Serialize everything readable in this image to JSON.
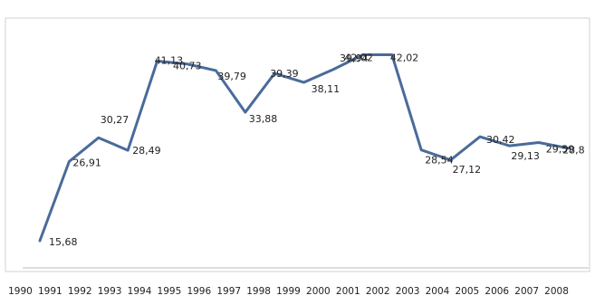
{
  "chart_data": {
    "type": "line",
    "title": "",
    "xlabel": "",
    "ylabel": "",
    "categories": [
      "1990",
      "1991",
      "1992",
      "1993",
      "1994",
      "1995",
      "1996",
      "1997",
      "1998",
      "1999",
      "2000",
      "2001",
      "2002",
      "2003",
      "2004",
      "2005",
      "2006",
      "2007",
      "2008"
    ],
    "series": [
      {
        "values": [
          15.68,
          26.91,
          30.27,
          28.49,
          41.13,
          40.73,
          39.79,
          33.88,
          39.39,
          38.11,
          39.94,
          42.02,
          42.02,
          28.54,
          27.12,
          30.42,
          29.13,
          29.59,
          28.8
        ],
        "labels": [
          "15,68",
          "26,91",
          "30,27",
          "28,49",
          "41,13",
          "40,73",
          "39,79",
          "33,88",
          "39,39",
          "38,11",
          "39,94",
          "42,02",
          "42,02",
          "28,54",
          "27,12",
          "30,42",
          "29,13",
          "29,59",
          "28,8"
        ],
        "color": "#4a6b9a"
      }
    ],
    "grid": false,
    "legend": "none"
  }
}
